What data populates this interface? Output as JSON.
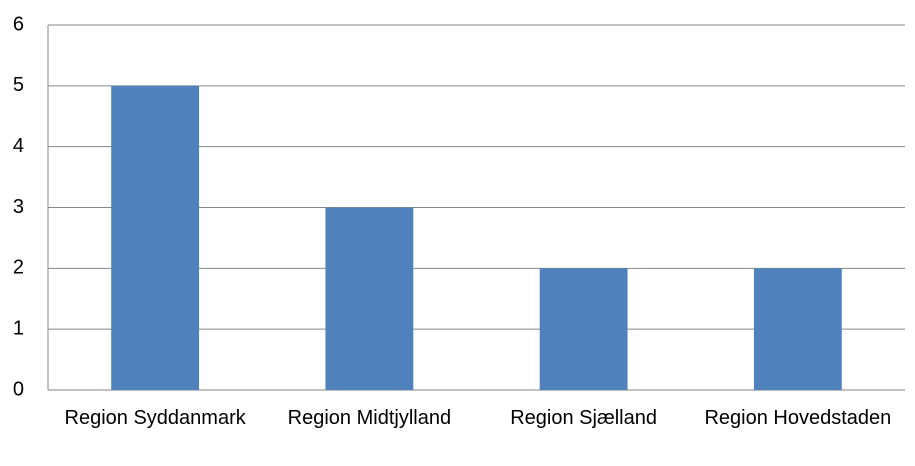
{
  "chart_data": {
    "type": "bar",
    "categories": [
      "Region Syddanmark",
      "Region Midtjylland",
      "Region Sjælland",
      "Region Hovedstaden"
    ],
    "values": [
      5,
      3,
      2,
      2
    ],
    "color": "#4f81bd",
    "ylim": [
      0,
      6
    ],
    "yticks": [
      0,
      1,
      2,
      3,
      4,
      5,
      6
    ],
    "grid": true
  }
}
